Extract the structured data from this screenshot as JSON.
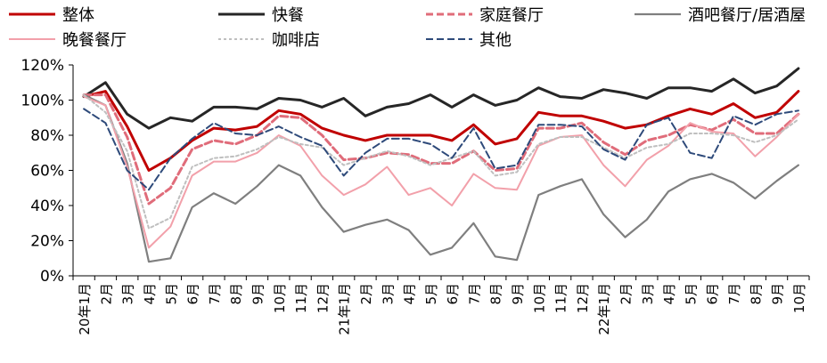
{
  "chart_data": {
    "type": "line",
    "title": "",
    "xlabel": "",
    "ylabel": "",
    "ylim": [
      0,
      120
    ],
    "yticks": [
      0,
      20,
      40,
      60,
      80,
      100,
      120
    ],
    "ytick_suffix": "%",
    "grid": false,
    "legend_position": "top",
    "x": [
      "20年1月",
      "2月",
      "3月",
      "4月",
      "5月",
      "6月",
      "7月",
      "8月",
      "9月",
      "10月",
      "11月",
      "12月",
      "21年1月",
      "2月",
      "3月",
      "4月",
      "5月",
      "6月",
      "7月",
      "8月",
      "9月",
      "10月",
      "11月",
      "12月",
      "22年1月",
      "2月",
      "3月",
      "4月",
      "5月",
      "6月",
      "7月",
      "8月",
      "9月",
      "10月"
    ],
    "series": [
      {
        "name": "整体",
        "color": "#c00000",
        "dash": "solid",
        "width": 3,
        "values": [
          102,
          105,
          85,
          60,
          67,
          77,
          84,
          83,
          85,
          94,
          92,
          84,
          80,
          77,
          80,
          80,
          80,
          77,
          86,
          75,
          78,
          93,
          91,
          91,
          88,
          84,
          86,
          91,
          95,
          92,
          98,
          90,
          93,
          105
        ]
      },
      {
        "name": "快餐",
        "color": "#262626",
        "dash": "solid",
        "width": 3,
        "values": [
          102,
          110,
          92,
          84,
          90,
          88,
          96,
          96,
          95,
          101,
          100,
          96,
          101,
          91,
          96,
          98,
          103,
          96,
          103,
          97,
          100,
          107,
          102,
          101,
          106,
          104,
          101,
          107,
          107,
          105,
          112,
          104,
          108,
          118
        ]
      },
      {
        "name": "家庭餐厅",
        "color": "#e06c7a",
        "dash": "dashed",
        "width": 3,
        "values": [
          103,
          103,
          79,
          41,
          50,
          72,
          77,
          75,
          80,
          91,
          90,
          80,
          66,
          67,
          70,
          69,
          64,
          64,
          71,
          60,
          61,
          84,
          84,
          87,
          76,
          69,
          77,
          80,
          86,
          83,
          89,
          81,
          81,
          92
        ]
      },
      {
        "name": "酒吧餐厅/居酒屋",
        "color": "#7f7f7f",
        "dash": "solid",
        "width": 2.2,
        "values": [
          103,
          97,
          64,
          8,
          10,
          39,
          47,
          41,
          51,
          63,
          57,
          39,
          25,
          29,
          32,
          26,
          12,
          16,
          30,
          11,
          9,
          46,
          51,
          55,
          35,
          22,
          32,
          48,
          55,
          58,
          53,
          44,
          54,
          63
        ]
      },
      {
        "name": "晚餐餐厅",
        "color": "#f2a0aa",
        "dash": "solid",
        "width": 2,
        "values": [
          102,
          97,
          62,
          16,
          28,
          57,
          65,
          65,
          70,
          80,
          74,
          57,
          46,
          52,
          62,
          46,
          50,
          40,
          58,
          50,
          49,
          74,
          79,
          80,
          63,
          51,
          66,
          74,
          87,
          82,
          81,
          68,
          79,
          92
        ]
      },
      {
        "name": "咖啡店",
        "color": "#bfbfbf",
        "dash": "dotted",
        "width": 2,
        "values": [
          103,
          93,
          71,
          27,
          33,
          62,
          67,
          68,
          72,
          79,
          75,
          73,
          63,
          67,
          71,
          68,
          63,
          67,
          71,
          57,
          59,
          75,
          79,
          79,
          73,
          67,
          73,
          75,
          81,
          81,
          80,
          76,
          80,
          89
        ]
      },
      {
        "name": "其他",
        "color": "#2e4a7a",
        "dash": "dashed",
        "width": 2,
        "values": [
          95,
          87,
          60,
          49,
          67,
          78,
          87,
          81,
          80,
          85,
          79,
          74,
          57,
          70,
          78,
          78,
          75,
          67,
          84,
          61,
          63,
          86,
          86,
          85,
          72,
          66,
          86,
          90,
          70,
          67,
          91,
          86,
          92,
          94
        ]
      }
    ]
  }
}
